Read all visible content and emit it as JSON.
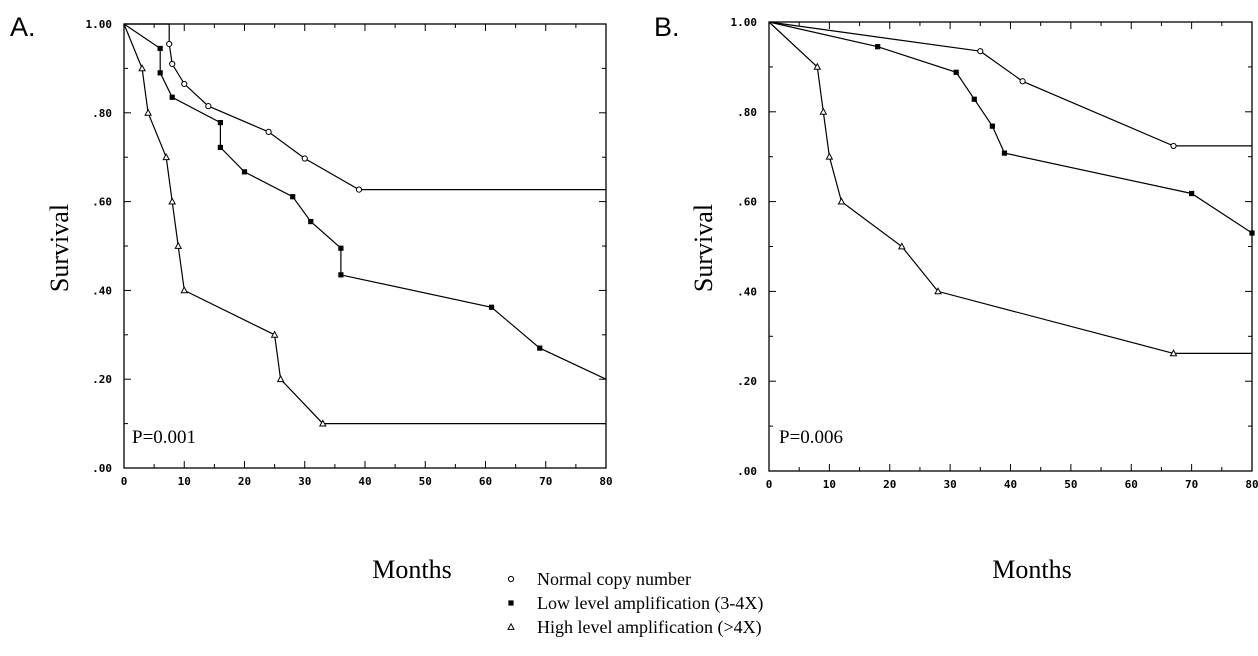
{
  "legend": [
    {
      "marker": "circle",
      "label": "Normal copy number"
    },
    {
      "marker": "square",
      "label": "Low level amplification (3-4X)"
    },
    {
      "marker": "triangle",
      "label": "High level amplification (>4X)"
    }
  ],
  "chart_data": [
    {
      "type": "line",
      "panel_label": "A.",
      "xlabel": "Months",
      "ylabel": "Survival",
      "annotation": "P=0.001",
      "xlim": [
        0,
        80
      ],
      "ylim": [
        0,
        1
      ],
      "x_ticks": [
        "0",
        "10",
        "20",
        "30",
        "40",
        "50",
        "60",
        "70",
        "80"
      ],
      "y_ticks": [
        ".00",
        ".20",
        ".40",
        ".60",
        ".80",
        "1.00"
      ],
      "series": [
        {
          "marker": "circle",
          "x": [
            0,
            7.5,
            7.5,
            8,
            10,
            14,
            24,
            30,
            39,
            80
          ],
          "y": [
            1.0,
            1.0,
            0.955,
            0.91,
            0.865,
            0.815,
            0.757,
            0.697,
            0.627,
            0.627
          ],
          "markers": [
            [
              7.5,
              0.955
            ],
            [
              8,
              0.91
            ],
            [
              10,
              0.865
            ],
            [
              14,
              0.815
            ],
            [
              24,
              0.757
            ],
            [
              30,
              0.697
            ],
            [
              39,
              0.627
            ]
          ]
        },
        {
          "marker": "square",
          "x": [
            0,
            6,
            6,
            8,
            16,
            16,
            20,
            28,
            31,
            36,
            36,
            61,
            69,
            80
          ],
          "y": [
            1.0,
            0.945,
            0.89,
            0.835,
            0.778,
            0.722,
            0.667,
            0.611,
            0.555,
            0.495,
            0.435,
            0.362,
            0.27,
            0.2
          ],
          "markers": [
            [
              6,
              0.945
            ],
            [
              6,
              0.89
            ],
            [
              8,
              0.835
            ],
            [
              16,
              0.778
            ],
            [
              16,
              0.722
            ],
            [
              20,
              0.667
            ],
            [
              28,
              0.611
            ],
            [
              31,
              0.555
            ],
            [
              36,
              0.495
            ],
            [
              36,
              0.435
            ],
            [
              61,
              0.362
            ],
            [
              69,
              0.27
            ]
          ]
        },
        {
          "marker": "triangle",
          "x": [
            0,
            3,
            4,
            7,
            8,
            9,
            10,
            25,
            26,
            33,
            80
          ],
          "y": [
            1.0,
            0.9,
            0.8,
            0.7,
            0.6,
            0.5,
            0.4,
            0.3,
            0.2,
            0.1,
            0.1
          ],
          "markers": [
            [
              3,
              0.9
            ],
            [
              4,
              0.8
            ],
            [
              7,
              0.7
            ],
            [
              8,
              0.6
            ],
            [
              9,
              0.5
            ],
            [
              10,
              0.4
            ],
            [
              25,
              0.3
            ],
            [
              26,
              0.2
            ],
            [
              33,
              0.1
            ]
          ]
        }
      ]
    },
    {
      "type": "line",
      "panel_label": "B.",
      "xlabel": "Months",
      "ylabel": "Survival",
      "annotation": "P=0.006",
      "xlim": [
        0,
        80
      ],
      "ylim": [
        0,
        1
      ],
      "x_ticks": [
        "0",
        "10",
        "20",
        "30",
        "40",
        "50",
        "60",
        "70",
        "80"
      ],
      "y_ticks": [
        ".00",
        ".20",
        ".40",
        ".60",
        ".80",
        "1.00"
      ],
      "series": [
        {
          "marker": "circle",
          "x": [
            0,
            35,
            42,
            67,
            80
          ],
          "y": [
            1.0,
            0.935,
            0.868,
            0.724,
            0.724
          ],
          "markers": [
            [
              35,
              0.935
            ],
            [
              42,
              0.868
            ],
            [
              67,
              0.724
            ]
          ]
        },
        {
          "marker": "square",
          "x": [
            0,
            18,
            31,
            34,
            37,
            39,
            70,
            80
          ],
          "y": [
            1.0,
            0.945,
            0.888,
            0.828,
            0.768,
            0.708,
            0.618,
            0.53
          ],
          "markers": [
            [
              18,
              0.945
            ],
            [
              31,
              0.888
            ],
            [
              34,
              0.828
            ],
            [
              37,
              0.768
            ],
            [
              39,
              0.708
            ],
            [
              70,
              0.618
            ],
            [
              80,
              0.53
            ]
          ]
        },
        {
          "marker": "triangle",
          "x": [
            0,
            8,
            9,
            10,
            12,
            22,
            28,
            67,
            80
          ],
          "y": [
            1.0,
            0.9,
            0.8,
            0.7,
            0.6,
            0.5,
            0.4,
            0.262,
            0.262
          ],
          "markers": [
            [
              8,
              0.9
            ],
            [
              9,
              0.8
            ],
            [
              10,
              0.7
            ],
            [
              12,
              0.6
            ],
            [
              22,
              0.5
            ],
            [
              28,
              0.4
            ],
            [
              67,
              0.262
            ]
          ]
        }
      ]
    }
  ]
}
